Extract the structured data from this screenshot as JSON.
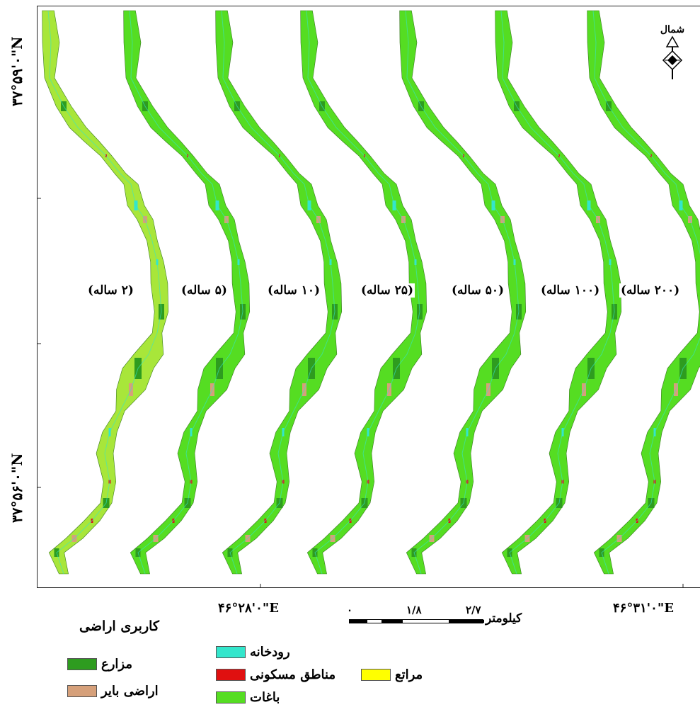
{
  "lat_labels": {
    "top": "۳۷°۵۹'۰\"N",
    "bottom": "۳۷°۵۶'۰\"N"
  },
  "lon_labels": {
    "left": "۴۶°۲۸'۰\"E",
    "right": "۴۶°۳۱'۰\"E"
  },
  "north_label": "شمال",
  "scenarios": [
    "(۲ ساله)",
    "(۵ ساله)",
    "(۱۰ ساله)",
    "(۲۵ ساله)",
    "(۵۰ ساله)",
    "(۱۰۰ ساله)",
    "(۲۰۰ ساله)"
  ],
  "scalebar": {
    "ticks": [
      "۰",
      "۱/۸",
      "۲/۷"
    ],
    "unit": "کیلومتر"
  },
  "legend": {
    "title": "کاربری اراضی",
    "items": [
      {
        "label": "مزارع",
        "color": "#2e9c1f"
      },
      {
        "label": "اراضی بایر",
        "color": "#d6a07a"
      },
      {
        "label": "رودخانه",
        "color": "#33e6cc"
      },
      {
        "label": "مناطق مسکونی",
        "color": "#e01010"
      },
      {
        "label": "باغات",
        "color": "#55dd22"
      },
      {
        "label": "مراتع",
        "color": "#ffff00"
      }
    ]
  },
  "colors": {
    "garden": "#55dd22",
    "farm": "#2e9c1f",
    "bare": "#d6a07a",
    "river": "#33e6cc",
    "residential": "#e01010",
    "pasture": "#ffff00",
    "pasture_mix": "#a8e63a"
  }
}
